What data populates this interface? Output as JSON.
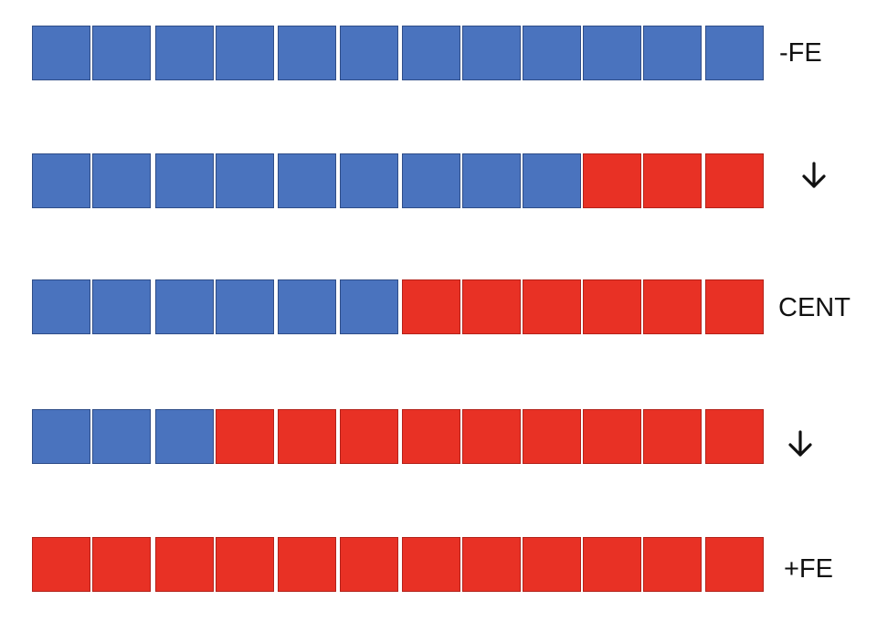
{
  "colors": {
    "blue": "#4a73be",
    "red": "#e83125"
  },
  "rows": [
    {
      "label": "-FE",
      "red_count": 0,
      "total": 12,
      "marker": "text"
    },
    {
      "label": "",
      "red_count": 3,
      "total": 12,
      "marker": "down-arrow-icon"
    },
    {
      "label": "CENT",
      "red_count": 6,
      "total": 12,
      "marker": "text"
    },
    {
      "label": "",
      "red_count": 9,
      "total": 12,
      "marker": "down-arrow-icon"
    },
    {
      "label": "+FE",
      "red_count": 12,
      "total": 12,
      "marker": "text"
    }
  ]
}
